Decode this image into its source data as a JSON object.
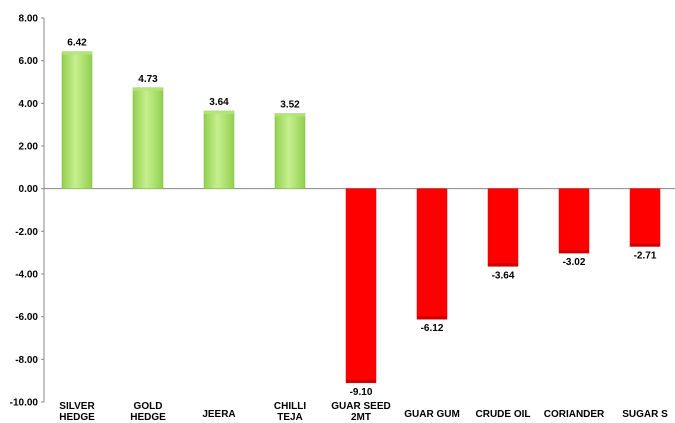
{
  "chart_data": {
    "type": "bar",
    "title": "",
    "xlabel": "",
    "ylabel": "",
    "categories": [
      [
        "SILVER",
        "HEDGE"
      ],
      [
        "GOLD",
        "HEDGE"
      ],
      [
        "JEERA"
      ],
      [
        "CHILLI",
        "TEJA"
      ],
      [
        "GUAR SEED",
        "2MT"
      ],
      [
        "GUAR GUM"
      ],
      [
        "CRUDE OIL"
      ],
      [
        "CORIANDER"
      ],
      [
        "SUGAR S"
      ]
    ],
    "values": [
      6.42,
      4.73,
      3.64,
      3.52,
      -9.1,
      -6.12,
      -3.64,
      -3.02,
      -2.71
    ],
    "data_labels": [
      "6.42",
      "4.73",
      "3.64",
      "3.52",
      "-9.10",
      "-6.12",
      "-3.64",
      "-3.02",
      "-2.71"
    ],
    "ylim": [
      -10,
      8
    ],
    "yticks": [
      8,
      6,
      4,
      2,
      0,
      -2,
      -4,
      -6,
      -8,
      -10
    ],
    "ytick_labels": [
      "8.00",
      "6.00",
      "4.00",
      "2.00",
      "0.00",
      "-2.00",
      "-4.00",
      "-6.00",
      "-8.00",
      "-10.00"
    ],
    "grid": false,
    "legend": "none",
    "colors": {
      "positive": "#92d050",
      "positive_light": "#c6ef8f",
      "negative": "#ff0000",
      "axis": "#888888"
    }
  }
}
